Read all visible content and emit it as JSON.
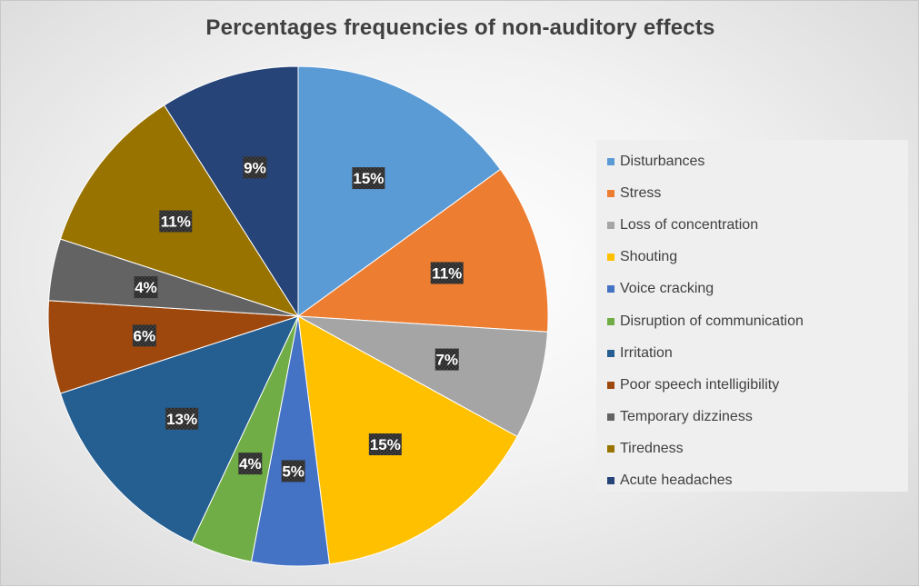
{
  "chart_data": {
    "type": "pie",
    "title": "Percentages frequencies of non-auditory effects",
    "legend_position": "right",
    "slices": [
      {
        "name": "Disturbances",
        "value": 15,
        "label": "15%",
        "color": "#5B9BD5"
      },
      {
        "name": "Stress",
        "value": 11,
        "label": "11%",
        "color": "#ED7D31"
      },
      {
        "name": "Loss of concentration",
        "value": 7,
        "label": "7%",
        "color": "#A5A5A5"
      },
      {
        "name": "Shouting",
        "value": 15,
        "label": "15%",
        "color": "#FFC000"
      },
      {
        "name": "Voice cracking",
        "value": 5,
        "label": "5%",
        "color": "#4472C4"
      },
      {
        "name": "Disruption of communication",
        "value": 4,
        "label": "4%",
        "color": "#70AD47"
      },
      {
        "name": "Irritation",
        "value": 13,
        "label": "13%",
        "color": "#255E91"
      },
      {
        "name": "Poor speech intelligibility",
        "value": 6,
        "label": "6%",
        "color": "#9E480E"
      },
      {
        "name": "Temporary dizziness",
        "value": 4,
        "label": "4%",
        "color": "#636363"
      },
      {
        "name": "Tiredness",
        "value": 11,
        "label": "11%",
        "color": "#997300"
      },
      {
        "name": "Acute headaches",
        "value": 9,
        "label": "9%",
        "color": "#264478"
      }
    ]
  }
}
